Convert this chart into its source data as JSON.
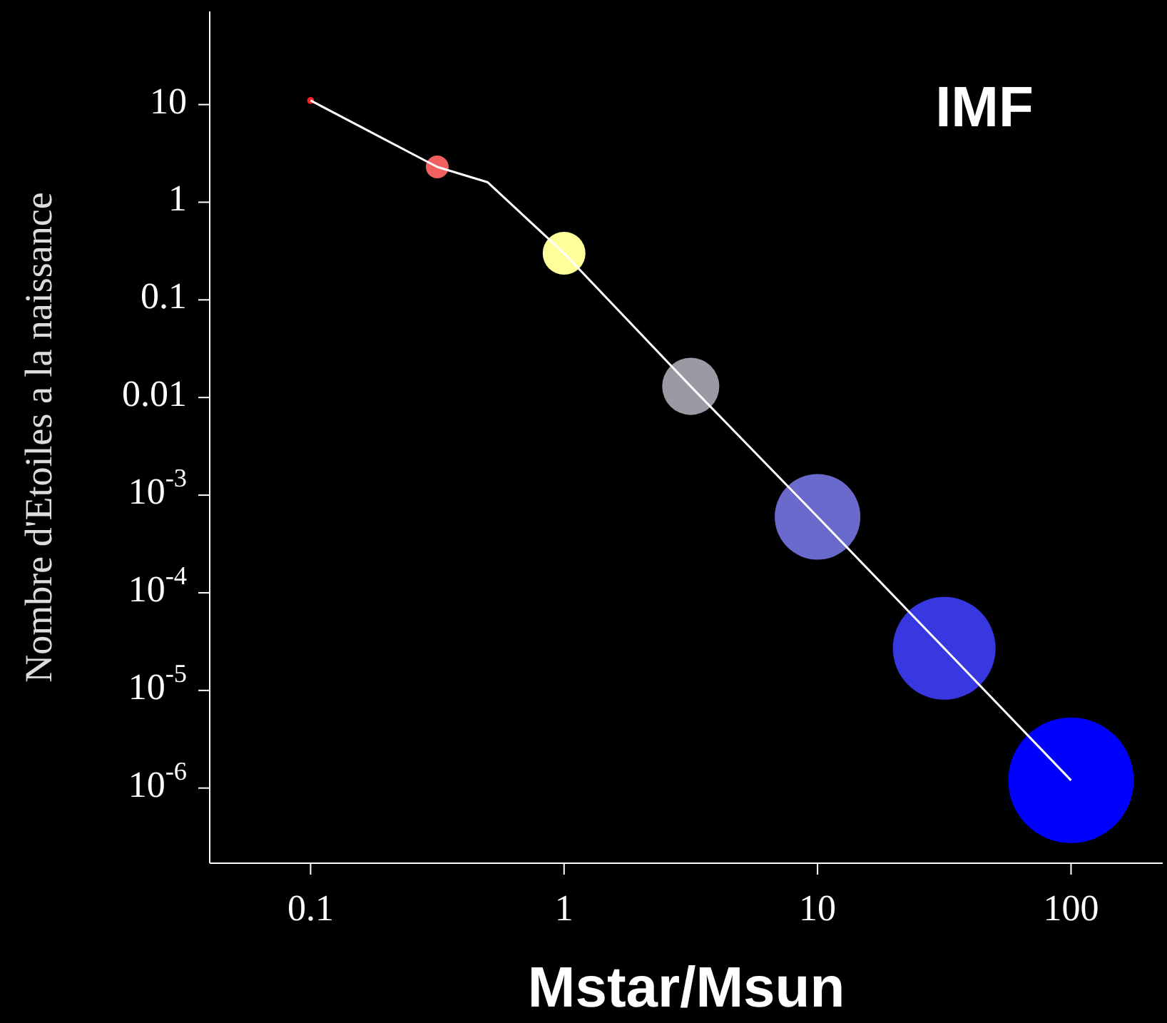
{
  "chart_data": {
    "type": "bubble",
    "title": "IMF",
    "xlabel": "Mstar/Msun",
    "ylabel": "Nombre d'Etoiles a la naissance",
    "log": "xy",
    "grid": false,
    "legend": false,
    "xlim": [
      0.04,
      230
    ],
    "ylim": [
      1.7e-07,
      90
    ],
    "xticks": [
      0.1,
      1,
      10,
      100
    ],
    "yticks": [
      10,
      1,
      0.1,
      0.01,
      {
        "value": 0.001,
        "label": "10$^{-3}$"
      },
      {
        "value": 0.0001,
        "label": "10$^{-4}$"
      },
      {
        "value": 1e-05,
        "label": "10$^{-5}$"
      },
      {
        "value": 1e-06,
        "label": "10$^{-6}$"
      }
    ],
    "series": [
      {
        "type": "line",
        "color": "#ffffff",
        "x": [
          0.1,
          0.316,
          0.5,
          1,
          3.16,
          10,
          31.6,
          100
        ],
        "values": [
          11,
          2.3,
          1.6,
          0.3,
          0.013,
          0.0006,
          2.7e-05,
          1.2e-06
        ]
      },
      {
        "type": "bubble",
        "x": [
          0.1,
          0.316,
          1,
          3.16,
          10,
          31.6,
          100
        ],
        "values": [
          11,
          2.3,
          0.3,
          0.013,
          0.0006,
          2.7e-05,
          1.2e-06
        ],
        "sizes": [
          0.003,
          0.033,
          0.116,
          0.207,
          0.465,
          0.67,
          1
        ],
        "colors": [
          "#ff2020",
          "#f06060",
          "#ffff99",
          "#9a9aa5",
          "#6a6acc",
          "#3838e0",
          "#0000ff"
        ]
      }
    ]
  }
}
